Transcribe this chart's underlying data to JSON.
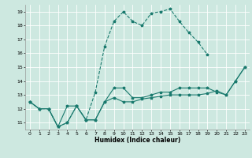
{
  "xlabel": "Humidex (Indice chaleur)",
  "xlim": [
    -0.5,
    23.5
  ],
  "ylim": [
    10.5,
    19.5
  ],
  "yticks": [
    11,
    12,
    13,
    14,
    15,
    16,
    17,
    18,
    19
  ],
  "xticks": [
    0,
    1,
    2,
    3,
    4,
    5,
    6,
    7,
    8,
    9,
    10,
    11,
    12,
    13,
    14,
    15,
    16,
    17,
    18,
    19,
    20,
    21,
    22,
    23
  ],
  "bg_color": "#cde8e0",
  "line_color": "#1a7a6e",
  "grid_color": "#ffffff",
  "lines": [
    {
      "x": [
        0,
        1,
        2,
        3,
        4,
        5,
        6,
        7,
        8,
        9,
        10,
        11,
        12,
        13,
        14,
        15,
        16,
        17,
        18,
        19
      ],
      "y": [
        12.5,
        12.0,
        12.0,
        10.7,
        11.0,
        12.2,
        11.2,
        13.2,
        16.5,
        18.3,
        19.0,
        18.3,
        18.0,
        18.9,
        19.0,
        19.2,
        18.3,
        17.5,
        16.8,
        15.9
      ],
      "linestyle": "--"
    },
    {
      "x": [
        0,
        1,
        2,
        3,
        4,
        5,
        6,
        7,
        8,
        9,
        10,
        11,
        12,
        13,
        14,
        15,
        16,
        17,
        18,
        19,
        20,
        21,
        22,
        23
      ],
      "y": [
        12.5,
        12.0,
        12.0,
        10.7,
        12.2,
        12.2,
        11.2,
        11.2,
        12.5,
        13.5,
        13.5,
        12.8,
        12.8,
        13.0,
        13.2,
        13.2,
        13.5,
        13.5,
        13.5,
        13.5,
        13.2,
        13.0,
        14.0,
        15.0
      ],
      "linestyle": "-"
    },
    {
      "x": [
        0,
        1,
        2,
        3,
        4,
        5,
        6,
        7,
        8,
        9,
        10,
        11,
        12,
        13,
        14,
        15,
        16,
        17,
        18,
        19,
        20,
        21,
        22,
        23
      ],
      "y": [
        12.5,
        12.0,
        12.0,
        10.7,
        11.0,
        12.2,
        11.2,
        11.2,
        12.5,
        12.8,
        12.5,
        12.5,
        12.7,
        12.8,
        12.9,
        13.0,
        13.0,
        13.0,
        13.0,
        13.1,
        13.3,
        13.0,
        14.0,
        15.0
      ],
      "linestyle": "-"
    }
  ]
}
